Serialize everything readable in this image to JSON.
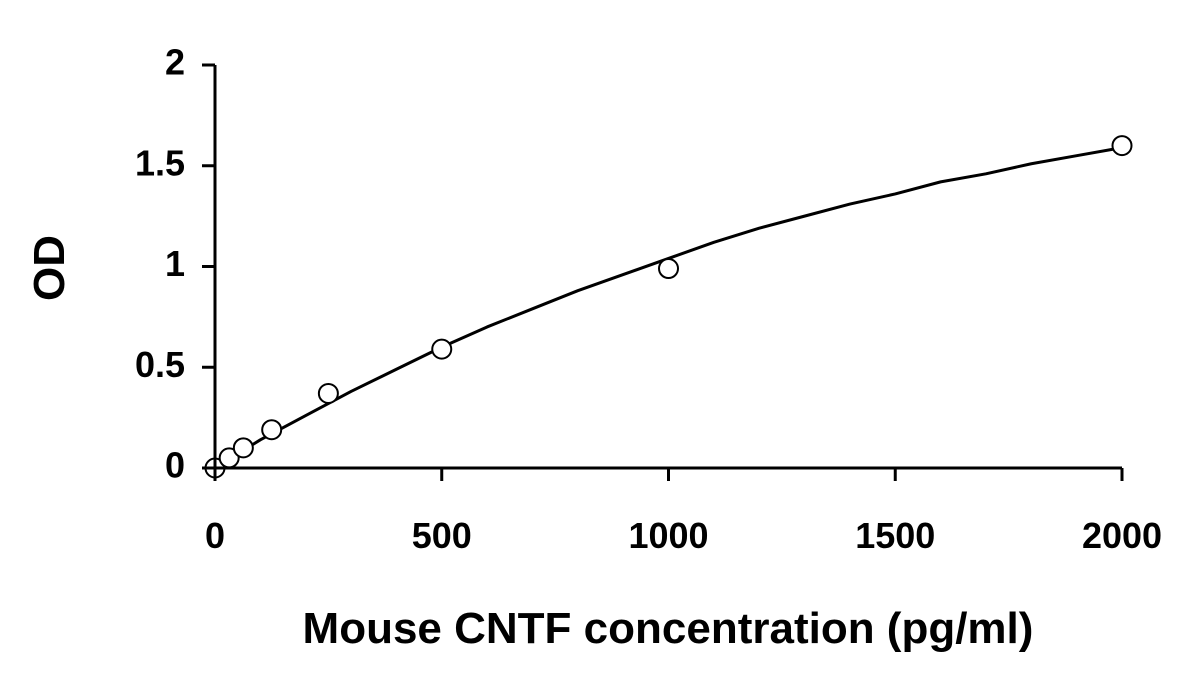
{
  "chart_data": {
    "type": "scatter",
    "title": "",
    "xlabel": "Mouse CNTF concentration (pg/ml)",
    "ylabel": "OD",
    "xlim": [
      0,
      2000
    ],
    "ylim": [
      0,
      2
    ],
    "x_ticks": [
      0,
      500,
      1000,
      1500,
      2000
    ],
    "y_ticks": [
      0,
      0.5,
      1,
      1.5,
      2
    ],
    "x_tick_labels": [
      "0",
      "500",
      "1000",
      "1500",
      "2000"
    ],
    "y_tick_labels": [
      "0",
      "0.5",
      "1",
      "1.5",
      "2"
    ],
    "grid": false,
    "legend": "none",
    "series": [
      {
        "kind": "points",
        "marker": "open-circle",
        "x": [
          0,
          31.25,
          62.5,
          125,
          250,
          500,
          1000,
          2000
        ],
        "y": [
          0.0,
          0.05,
          0.1,
          0.19,
          0.37,
          0.59,
          0.99,
          1.6
        ]
      },
      {
        "kind": "fitted-curve",
        "x": [
          0,
          100,
          200,
          300,
          400,
          500,
          600,
          700,
          800,
          900,
          1000,
          1100,
          1200,
          1300,
          1400,
          1500,
          1600,
          1700,
          1800,
          1900,
          2000
        ],
        "y": [
          0.0,
          0.14,
          0.26,
          0.38,
          0.49,
          0.6,
          0.7,
          0.79,
          0.88,
          0.96,
          1.04,
          1.12,
          1.19,
          1.25,
          1.31,
          1.36,
          1.42,
          1.46,
          1.51,
          1.55,
          1.59
        ]
      }
    ],
    "colors": {
      "axis": "#000000",
      "marker_stroke": "#000000",
      "marker_fill": "#ffffff",
      "curve": "#000000"
    }
  }
}
